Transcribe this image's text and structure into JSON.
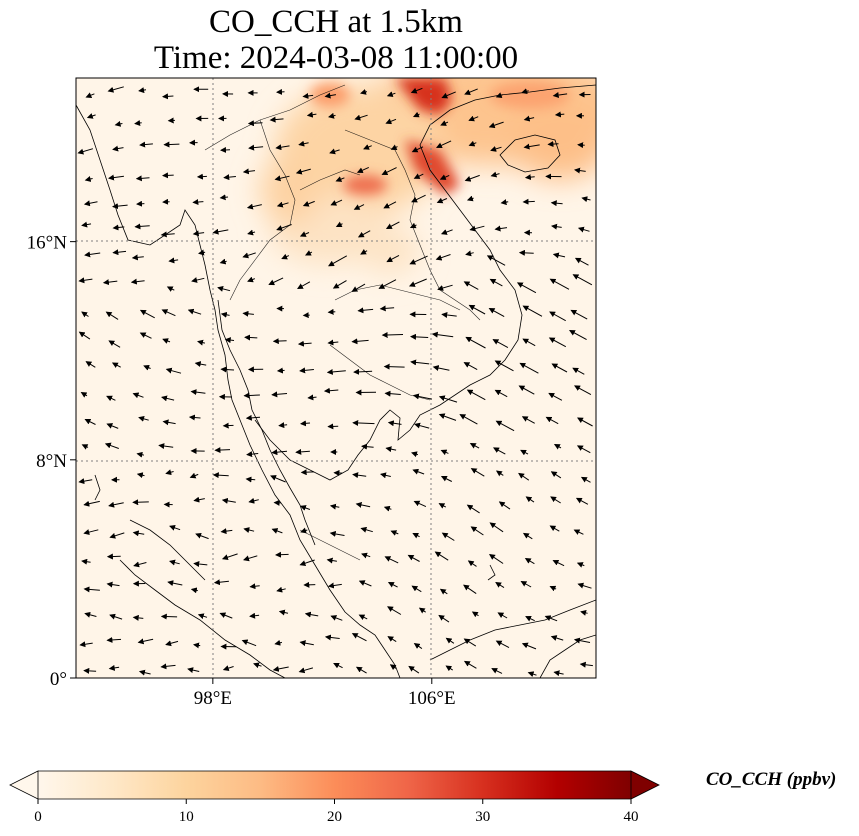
{
  "title": {
    "line1": "CO_CCH at 1.5km",
    "line2": "Time: 2024-03-08 11:00:00"
  },
  "map": {
    "variable": "CO_CCH",
    "height": "1.5km",
    "time": "2024-03-08 11:00:00",
    "extent": {
      "lon_min": 93,
      "lon_max": 112,
      "lat_min": 0,
      "lat_max": 22
    },
    "lat_ticks": [
      {
        "value": 16,
        "label": "16°N"
      },
      {
        "value": 8,
        "label": "8°N"
      },
      {
        "value": 0,
        "label": "0°"
      }
    ],
    "lon_ticks": [
      {
        "value": 98,
        "label": "98°E"
      },
      {
        "value": 106,
        "label": "106°E"
      }
    ],
    "gridlines": "dotted",
    "wind_vectors": true
  },
  "colorbar": {
    "label": "CO_CCH (ppbv)",
    "min": 0,
    "max": 40,
    "extend": "both",
    "colormap": "OrRd",
    "ticks": [
      "0",
      "10",
      "20",
      "30",
      "40"
    ],
    "colors": [
      "#fff7ec",
      "#fee8c8",
      "#fdd49e",
      "#fdbb84",
      "#fc8d59",
      "#ef6548",
      "#d7301f",
      "#b30000",
      "#7f0000"
    ]
  }
}
